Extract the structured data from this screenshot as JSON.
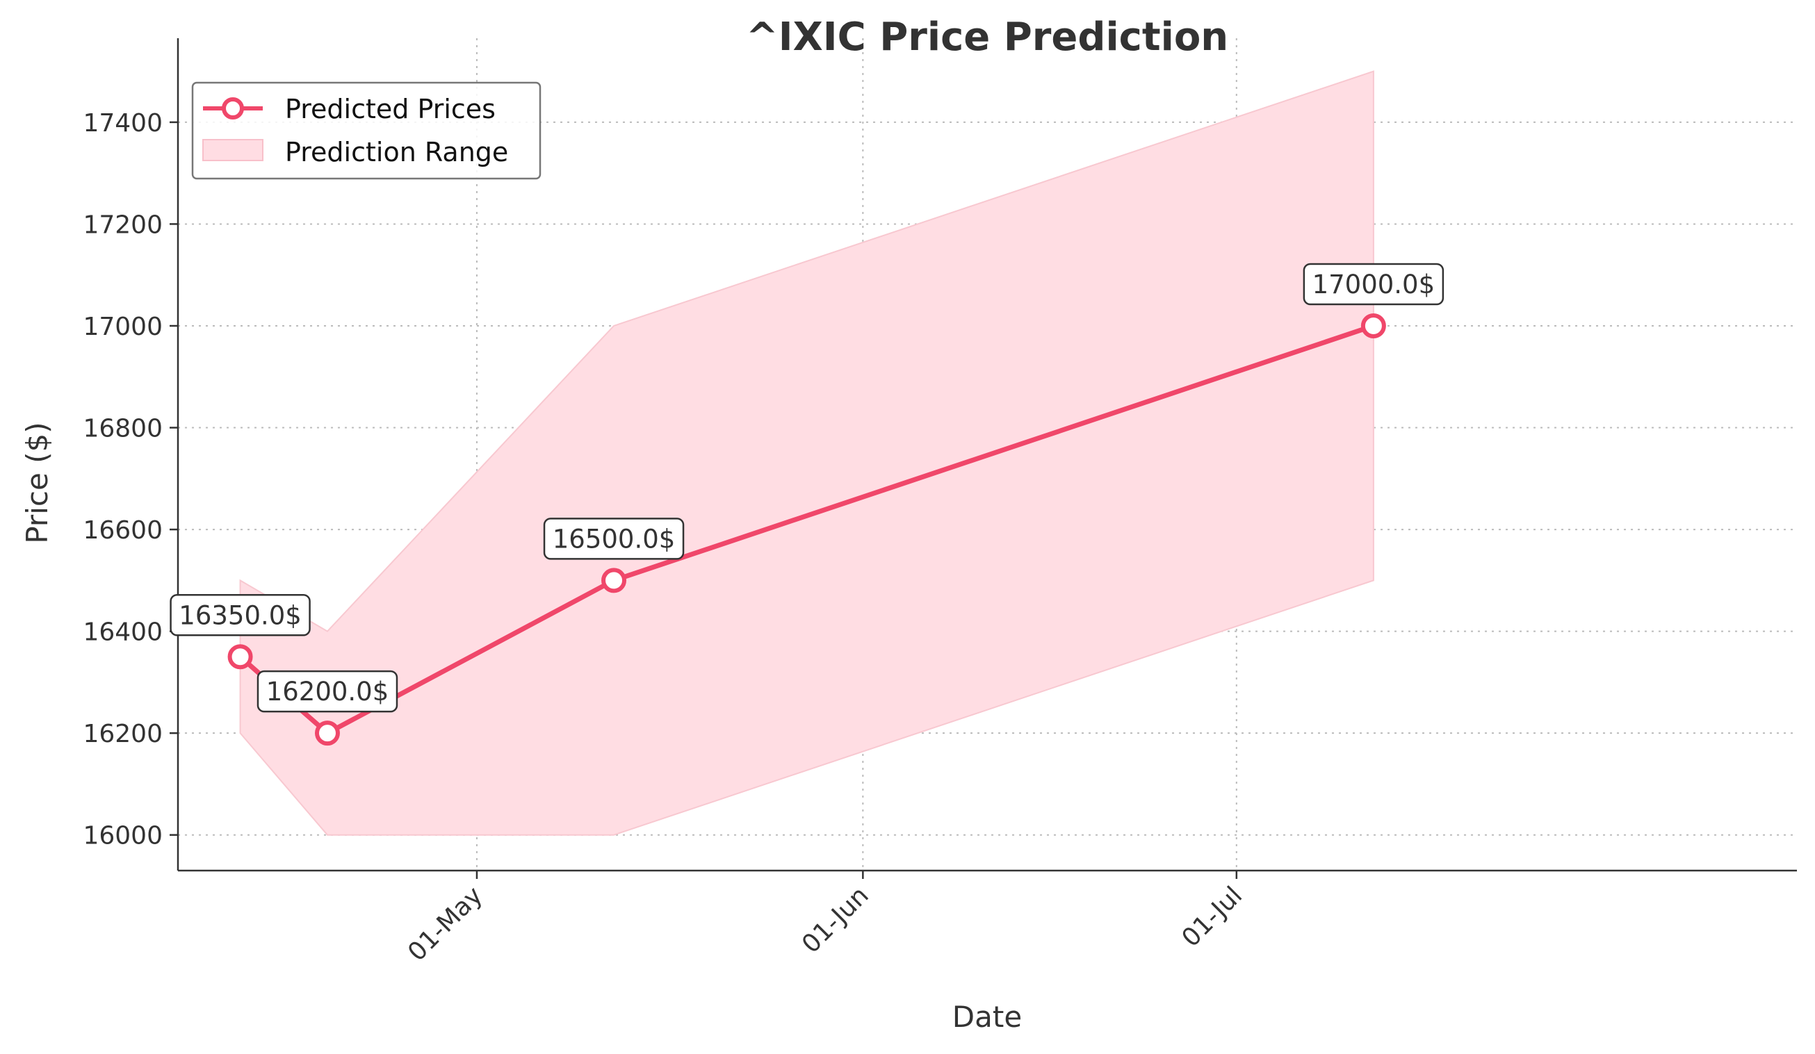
{
  "chart_data": {
    "type": "line",
    "title": "^IXIC Price Prediction",
    "xlabel": "Date",
    "ylabel": "Price ($)",
    "x_ticks": [
      {
        "date": "2024-05-01",
        "label": "01-May"
      },
      {
        "date": "2024-06-01",
        "label": "01-Jun"
      },
      {
        "date": "2024-07-01",
        "label": "01-Jul"
      }
    ],
    "y_ticks": [
      16000,
      16200,
      16400,
      16600,
      16800,
      17000,
      17200,
      17400
    ],
    "xlim": [
      "2024-04-07",
      "2024-08-15"
    ],
    "ylim": [
      15930,
      17565
    ],
    "grid": true,
    "legend_position": "top-left",
    "color": "#f0476a",
    "band_color": "#ffdde3",
    "series": [
      {
        "name": "Predicted Prices",
        "points": [
          {
            "date": "2024-04-12",
            "value": 16350,
            "label": "16350.0$"
          },
          {
            "date": "2024-04-19",
            "value": 16200,
            "label": "16200.0$"
          },
          {
            "date": "2024-05-12",
            "value": 16500,
            "label": "16500.0$"
          },
          {
            "date": "2024-07-12",
            "value": 17000,
            "label": "17000.0$"
          }
        ]
      }
    ],
    "band": {
      "name": "Prediction Range",
      "lower": [
        16200,
        16000,
        16000,
        16500
      ],
      "upper": [
        16500,
        16400,
        17000,
        17500
      ]
    }
  }
}
